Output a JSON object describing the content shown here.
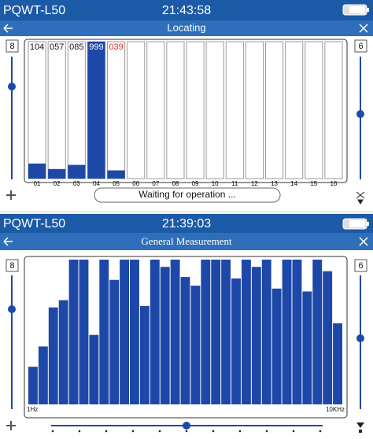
{
  "screens": [
    {
      "header": {
        "device": "PQWT-L50",
        "time": "21:43:58"
      },
      "title": "Locating",
      "left_value": "8",
      "right_value": "6",
      "channels": {
        "labels": [
          "01",
          "02",
          "03",
          "04",
          "05",
          "06",
          "07",
          "08",
          "09",
          "10",
          "11",
          "12",
          "13",
          "14",
          "15",
          "16"
        ],
        "readings": [
          "104",
          "057",
          "085",
          "999",
          "039",
          null,
          null,
          null,
          null,
          null,
          null,
          null,
          null,
          null,
          null,
          null
        ],
        "reading_colors": [
          "#111111",
          "#111111",
          "#111111",
          "#ffffff",
          "#e02828",
          null,
          null,
          null,
          null,
          null,
          null,
          null,
          null,
          null,
          null,
          null
        ],
        "levels": [
          11,
          7,
          10,
          100,
          6,
          0,
          0,
          0,
          0,
          0,
          0,
          0,
          0,
          0,
          0,
          0
        ],
        "color": "#1e48a8"
      },
      "status": "Waiting for operation ..."
    },
    {
      "header": {
        "device": "PQWT-L50",
        "time": "21:39:03"
      },
      "title": "General Measurement",
      "left_value": "8",
      "right_value": "6",
      "spectrum": {
        "levels": [
          26,
          40,
          67,
          72,
          100,
          100,
          48,
          100,
          86,
          100,
          100,
          68,
          100,
          95,
          100,
          88,
          82,
          100,
          100,
          100,
          87,
          100,
          95,
          100,
          80,
          100,
          100,
          78,
          100,
          92,
          56
        ],
        "color": "#1e48a8",
        "start_label": "1Hz",
        "end_label": "10KHz"
      }
    }
  ]
}
